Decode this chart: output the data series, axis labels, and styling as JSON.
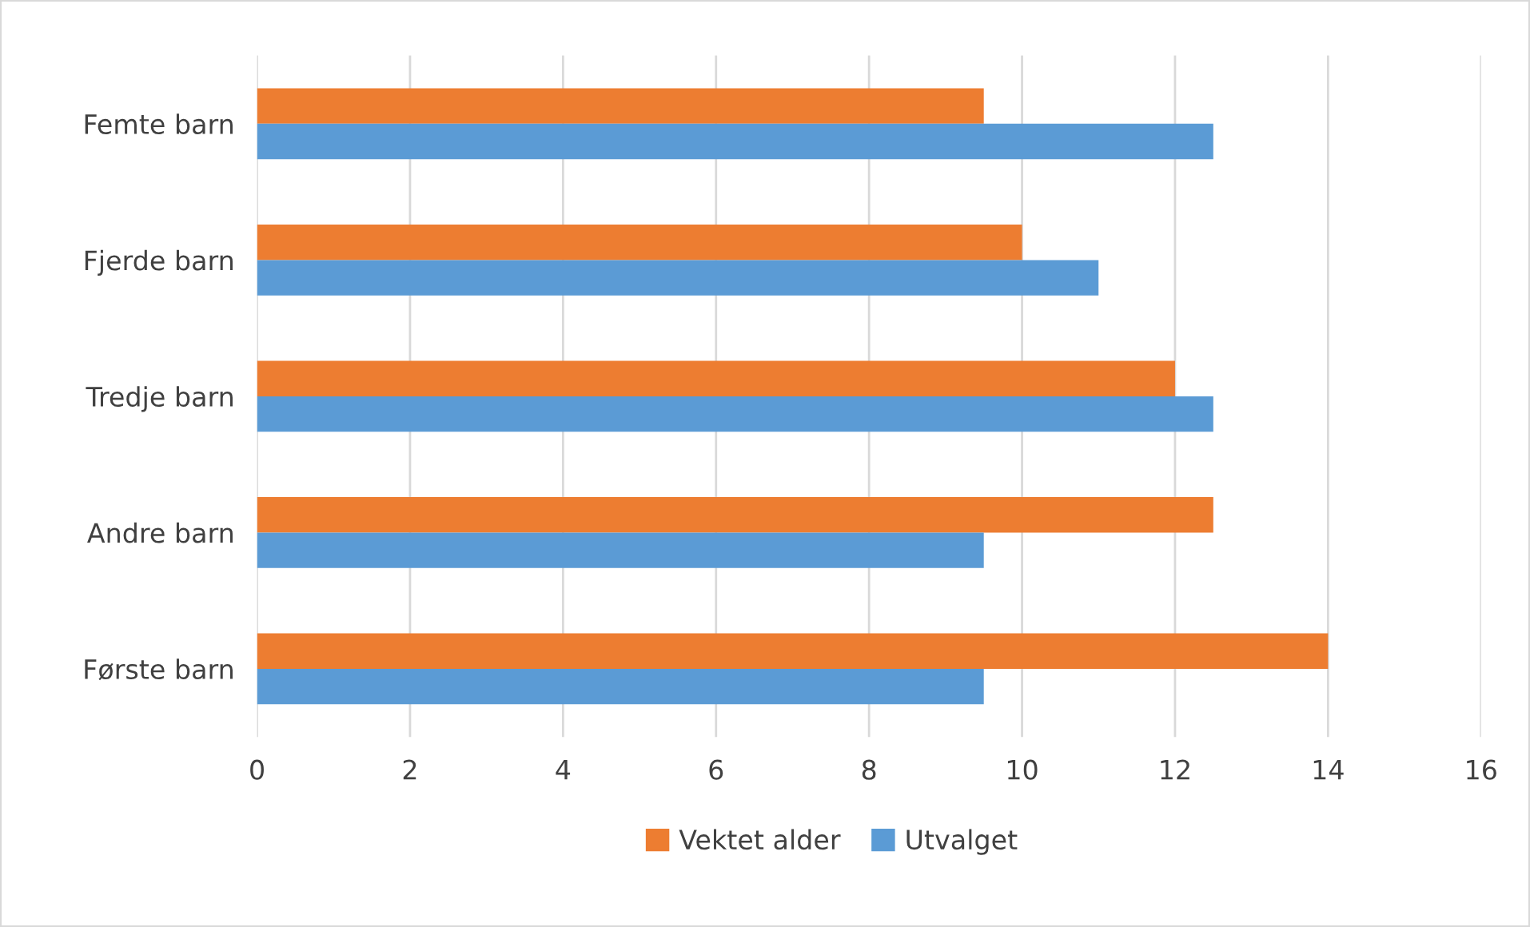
{
  "chart_data": {
    "type": "bar",
    "orientation": "horizontal",
    "categories": [
      "Femte barn",
      "Fjerde barn",
      "Tredje barn",
      "Andre barn",
      "Første barn"
    ],
    "series": [
      {
        "name": "Vektet alder",
        "color": "#ed7d31",
        "values": [
          9.5,
          10,
          12,
          12.5,
          14
        ]
      },
      {
        "name": "Utvalget",
        "color": "#5b9bd5",
        "values": [
          12.5,
          11,
          12.5,
          9.5,
          9.5
        ]
      }
    ],
    "xlim": [
      0,
      16
    ],
    "xticks": [
      0,
      2,
      4,
      6,
      8,
      10,
      12,
      14,
      16
    ],
    "grid": "x",
    "legend": "bottom"
  }
}
